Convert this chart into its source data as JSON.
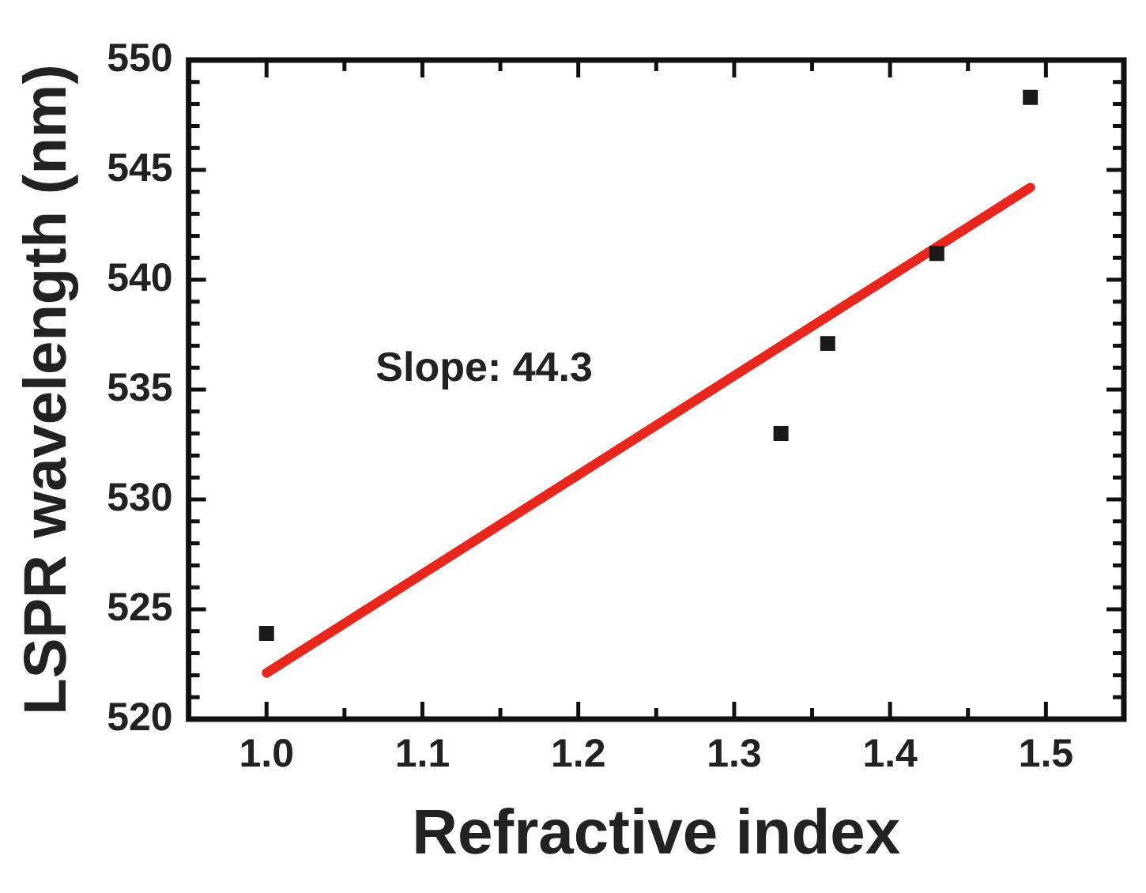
{
  "chart_data": {
    "type": "scatter",
    "xlabel": "Refractive index",
    "ylabel": "LSPR wavelength (nm)",
    "x": [
      1.0,
      1.33,
      1.36,
      1.43,
      1.49
    ],
    "series": [
      {
        "color": "#1a1a1a",
        "marker": "square",
        "values": [
          523.9,
          533.0,
          537.1,
          541.2,
          548.3
        ]
      },
      {
        "type": "line",
        "color": "#e8261c",
        "marker": "none",
        "x": [
          1.0,
          1.49
        ],
        "values": [
          522.1,
          544.2
        ]
      }
    ],
    "annotations": [
      "Slope: 44.3"
    ],
    "xlim": [
      0.95,
      1.55
    ],
    "xticks": [
      {
        "value": 1,
        "label": "1.0"
      },
      {
        "value": 1.05,
        "label": null
      },
      1.1,
      {
        "value": 1.15,
        "label": null
      },
      1.2,
      {
        "value": 1.25,
        "label": null
      },
      1.3,
      {
        "value": 1.35,
        "label": null
      },
      1.4,
      {
        "value": 1.45,
        "label": null
      },
      {
        "value": 1.5,
        "label": "1.5"
      }
    ],
    "ylim": [
      520,
      550
    ],
    "yticks": [
      520,
      {
        "value": 521,
        "label": null
      },
      {
        "value": 522,
        "label": null
      },
      {
        "value": 523,
        "label": null
      },
      {
        "value": 524,
        "label": null
      },
      525,
      {
        "value": 526,
        "label": null
      },
      {
        "value": 527,
        "label": null
      },
      {
        "value": 528,
        "label": null
      },
      {
        "value": 529,
        "label": null
      },
      530,
      {
        "value": 531,
        "label": null
      },
      {
        "value": 532,
        "label": null
      },
      {
        "value": 533,
        "label": null
      },
      {
        "value": 534,
        "label": null
      },
      535,
      {
        "value": 536,
        "label": null
      },
      {
        "value": 537,
        "label": null
      },
      {
        "value": 538,
        "label": null
      },
      {
        "value": 539,
        "label": null
      },
      540,
      {
        "value": 541,
        "label": null
      },
      {
        "value": 542,
        "label": null
      },
      {
        "value": 543,
        "label": null
      },
      {
        "value": 544,
        "label": null
      },
      545,
      {
        "value": 546,
        "label": null
      },
      {
        "value": 547,
        "label": null
      },
      {
        "value": 548,
        "label": null
      },
      {
        "value": 549,
        "label": null
      },
      550
    ],
    "grid": false,
    "legend": false
  }
}
